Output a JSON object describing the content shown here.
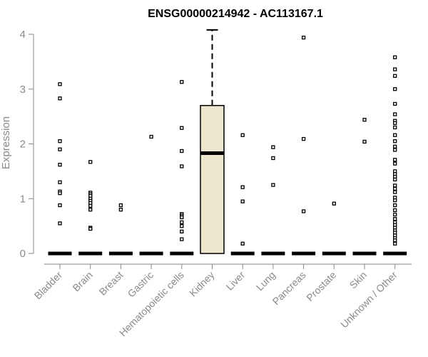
{
  "chart_data": {
    "type": "box",
    "title": "ENSG00000214942 - AC113167.1",
    "xlabel": "",
    "ylabel": "Expression",
    "ylim": [
      0,
      4.1
    ],
    "yticks": [
      0,
      1,
      2,
      3,
      4
    ],
    "categories": [
      "Bladder",
      "Brain",
      "Breast",
      "Gastric",
      "Hematopoietic cells",
      "Kidney",
      "Liver",
      "Lung",
      "Pancreas",
      "Prostate",
      "Skin",
      "Unknown / Other"
    ],
    "boxes": [
      {
        "category": "Bladder",
        "q1": 0,
        "median": 0,
        "q3": 0,
        "whisker_low": 0,
        "whisker_high": 0
      },
      {
        "category": "Brain",
        "q1": 0,
        "median": 0,
        "q3": 0,
        "whisker_low": 0,
        "whisker_high": 0
      },
      {
        "category": "Breast",
        "q1": 0,
        "median": 0,
        "q3": 0,
        "whisker_low": 0,
        "whisker_high": 0
      },
      {
        "category": "Gastric",
        "q1": 0,
        "median": 0,
        "q3": 0,
        "whisker_low": 0,
        "whisker_high": 0
      },
      {
        "category": "Hematopoietic cells",
        "q1": 0,
        "median": 0,
        "q3": 0,
        "whisker_low": 0,
        "whisker_high": 0
      },
      {
        "category": "Kidney",
        "q1": 0,
        "median": 1.83,
        "q3": 2.7,
        "whisker_low": 0,
        "whisker_high": 4.08
      },
      {
        "category": "Liver",
        "q1": 0,
        "median": 0,
        "q3": 0,
        "whisker_low": 0,
        "whisker_high": 0
      },
      {
        "category": "Lung",
        "q1": 0,
        "median": 0,
        "q3": 0,
        "whisker_low": 0,
        "whisker_high": 0
      },
      {
        "category": "Pancreas",
        "q1": 0,
        "median": 0,
        "q3": 0,
        "whisker_low": 0,
        "whisker_high": 0
      },
      {
        "category": "Prostate",
        "q1": 0,
        "median": 0,
        "q3": 0,
        "whisker_low": 0,
        "whisker_high": 0
      },
      {
        "category": "Skin",
        "q1": 0,
        "median": 0,
        "q3": 0,
        "whisker_low": 0,
        "whisker_high": 0
      },
      {
        "category": "Unknown / Other",
        "q1": 0,
        "median": 0,
        "q3": 0,
        "whisker_low": 0,
        "whisker_high": 0
      }
    ],
    "outliers": [
      {
        "category": "Bladder",
        "values": [
          3.09,
          2.83,
          2.05,
          1.9,
          1.62,
          1.3,
          1.13,
          1.1,
          0.88,
          0.55
        ]
      },
      {
        "category": "Brain",
        "values": [
          1.67,
          1.11,
          1.08,
          1.05,
          1.0,
          0.96,
          0.92,
          0.87,
          0.8,
          0.47,
          0.45
        ]
      },
      {
        "category": "Breast",
        "values": [
          0.88,
          0.8
        ]
      },
      {
        "category": "Gastric",
        "values": [
          2.13
        ]
      },
      {
        "category": "Hematopoietic cells",
        "values": [
          3.13,
          2.29,
          1.87,
          1.59,
          0.72,
          0.69,
          0.66,
          0.57,
          0.5,
          0.4,
          0.26
        ]
      },
      {
        "category": "Kidney",
        "values": []
      },
      {
        "category": "Liver",
        "values": [
          2.16,
          1.21,
          0.95,
          0.18
        ]
      },
      {
        "category": "Lung",
        "values": [
          1.94,
          1.74,
          1.25
        ]
      },
      {
        "category": "Pancreas",
        "values": [
          3.94,
          2.09,
          0.77
        ]
      },
      {
        "category": "Prostate",
        "values": [
          0.91
        ]
      },
      {
        "category": "Skin",
        "values": [
          2.44,
          2.04
        ]
      },
      {
        "category": "Unknown / Other",
        "values": [
          3.58,
          3.36,
          3.24,
          3.0,
          2.73,
          2.54,
          2.42,
          2.38,
          2.3,
          2.16,
          2.05,
          1.95,
          1.89,
          1.71,
          1.64,
          1.5,
          1.45,
          1.4,
          1.35,
          1.24,
          1.18,
          1.12,
          1.02,
          0.97,
          0.88,
          0.79,
          0.71,
          0.63,
          0.57,
          0.52,
          0.47,
          0.42,
          0.38,
          0.33,
          0.28,
          0.24,
          0.18
        ]
      }
    ],
    "colors": {
      "box_fill": "#ede6cf",
      "box_stroke": "#000000",
      "axis": "#8a8a8a",
      "title": "#000000"
    },
    "grid": false
  }
}
